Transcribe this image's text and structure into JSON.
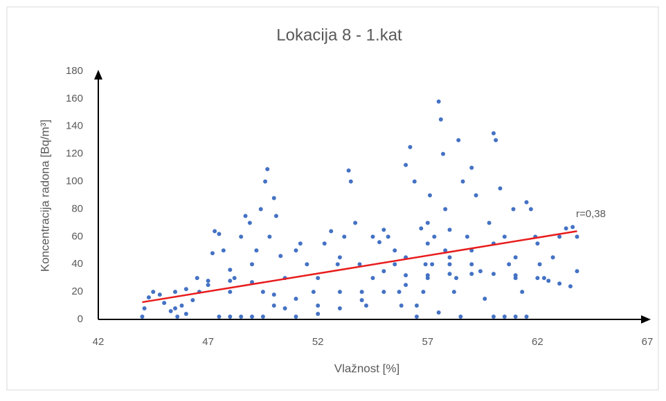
{
  "chart_data": {
    "type": "scatter",
    "title": "Lokacija 8 - 1.kat",
    "xlabel": "Vlažnost [%]",
    "ylabel": "Koncentracija radona [Bq/m³]",
    "color": "#4472c4",
    "x": [
      44,
      44.1,
      44.3,
      44.5,
      44.8,
      45,
      45.3,
      45.6,
      45.5,
      45.8,
      46,
      46.3,
      46.6,
      47,
      47.2,
      47.3,
      47.5,
      47.7,
      48,
      48.2,
      48.5,
      48.7,
      48.9,
      49.2,
      49.4,
      49.6,
      49.7,
      49.8,
      50,
      50.1,
      50.3,
      47.5,
      48,
      48.5,
      49,
      49.5,
      49.5,
      50.5,
      51,
      51.2,
      51.5,
      51.8,
      52,
      52.3,
      52.6,
      52.9,
      53,
      53.2,
      53.4,
      53.5,
      53.7,
      53.9,
      54,
      54.2,
      54.5,
      54.8,
      55,
      55.2,
      55.5,
      55.7,
      56,
      56.2,
      56.4,
      56.5,
      56.7,
      56.9,
      57,
      57.1,
      57.3,
      57.5,
      57.6,
      57.7,
      57.8,
      58,
      58.2,
      58.4,
      58.6,
      58.8,
      59,
      59.2,
      59.4,
      59.6,
      59.8,
      60,
      60.1,
      60.3,
      60.5,
      60.7,
      60.9,
      61,
      61.3,
      61.5,
      61.7,
      61.9,
      62.1,
      62.3,
      62.5,
      62.7,
      63,
      63.3,
      63.6,
      63.8,
      63.8,
      63.5,
      63,
      62,
      61,
      60,
      59,
      58,
      57,
      56,
      55,
      54,
      53,
      52,
      51,
      50.5,
      50,
      49,
      48,
      47,
      46,
      60,
      60.5,
      61,
      61.5,
      55.5,
      56,
      57,
      58,
      59,
      56.5,
      57.5,
      58.5,
      54.5,
      53,
      52,
      51,
      50,
      49,
      48,
      46.5,
      45.5,
      55,
      56,
      57,
      58,
      59,
      60,
      61,
      62,
      57.2,
      57.8,
      58.3,
      56.8,
      55.8
    ],
    "values": [
      2,
      8,
      16,
      20,
      18,
      12,
      6,
      2,
      20,
      10,
      4,
      14,
      20,
      25,
      48,
      64,
      62,
      50,
      36,
      30,
      60,
      75,
      70,
      50,
      80,
      100,
      109,
      60,
      88,
      75,
      46,
      2,
      2,
      2,
      2,
      2,
      20,
      30,
      50,
      55,
      40,
      20,
      10,
      55,
      64,
      40,
      20,
      60,
      108,
      100,
      70,
      40,
      20,
      10,
      30,
      56,
      65,
      60,
      40,
      20,
      112,
      125,
      100,
      10,
      66,
      40,
      30,
      90,
      60,
      158,
      145,
      120,
      80,
      40,
      20,
      130,
      100,
      60,
      110,
      90,
      35,
      15,
      70,
      135,
      130,
      95,
      60,
      40,
      80,
      30,
      20,
      85,
      80,
      60,
      40,
      30,
      28,
      45,
      60,
      66,
      67,
      60,
      35,
      24,
      26,
      30,
      32,
      33,
      33,
      33,
      32,
      32,
      20,
      14,
      8,
      4,
      2,
      8,
      18,
      27,
      28,
      28,
      22,
      2,
      2,
      2,
      2,
      50,
      45,
      55,
      45,
      50,
      2,
      5,
      2,
      60,
      45,
      30,
      15,
      10,
      40,
      20,
      30,
      8,
      35,
      25,
      70,
      65,
      40,
      55,
      45,
      55,
      40,
      50,
      30,
      20,
      10
    ],
    "trendline": {
      "x": [
        44,
        63.8
      ],
      "values": [
        12.5,
        64
      ],
      "color": "#e81c1c"
    },
    "annotation": "r=0,38",
    "xlim": [
      42,
      67
    ],
    "xticks": [
      42,
      47,
      52,
      57,
      62,
      67
    ],
    "ylim": [
      0,
      180
    ],
    "yticks": [
      0,
      20,
      40,
      60,
      80,
      100,
      120,
      140,
      160,
      180
    ],
    "grid": false
  }
}
